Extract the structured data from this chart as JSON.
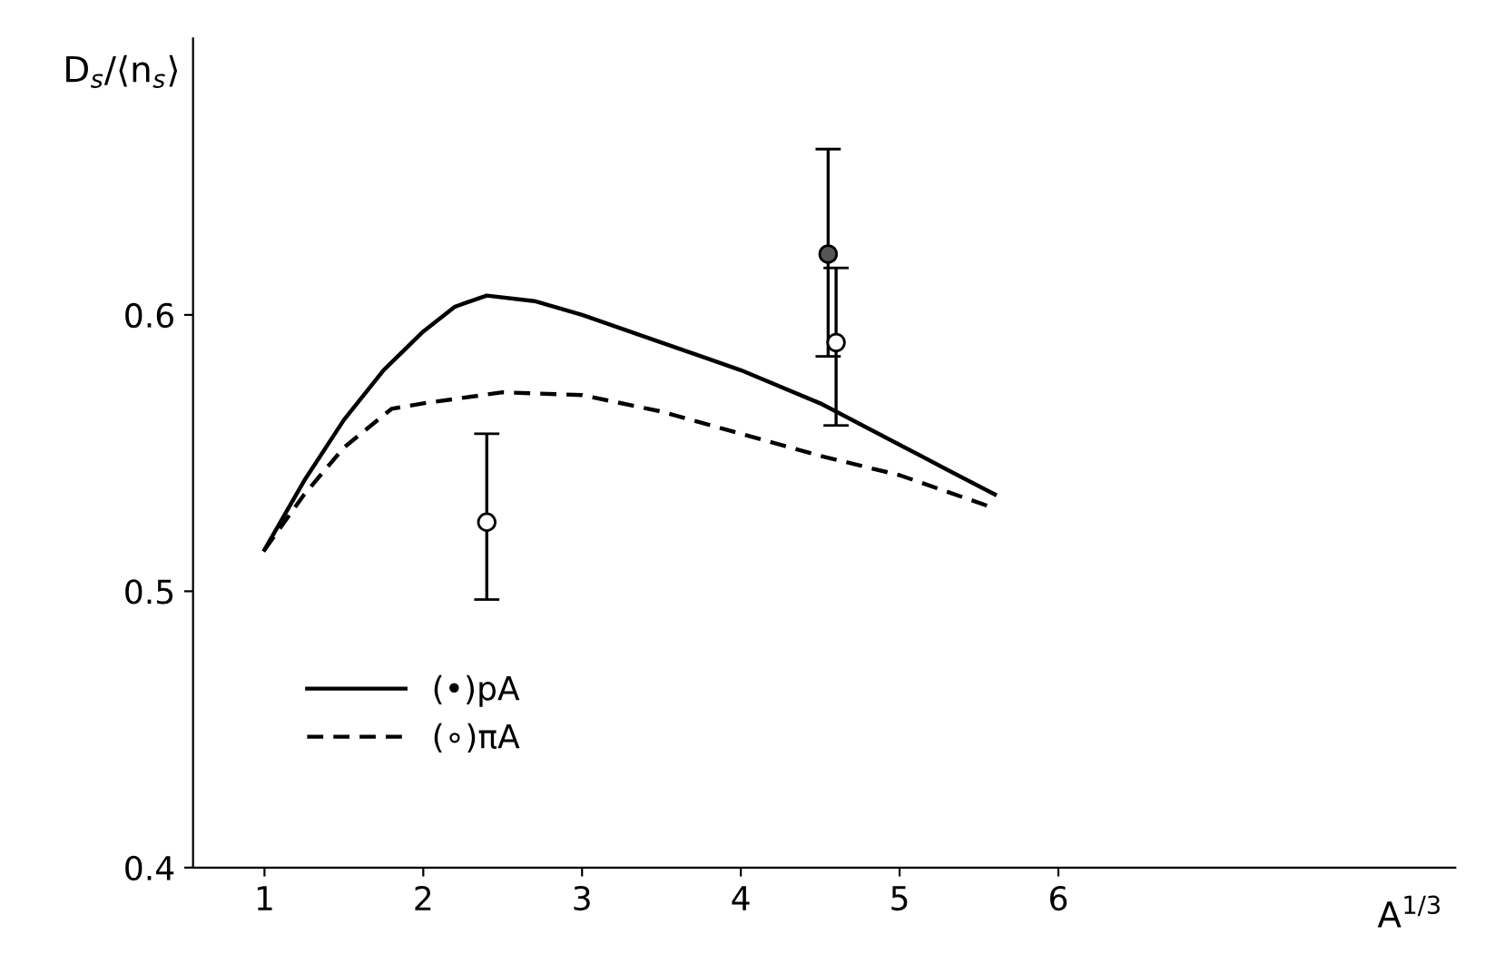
{
  "chart_data": {
    "type": "line",
    "xlabel": "A$^{1/3}$",
    "ylabel": "D$_{s}$/⟨n$_{s}$⟩",
    "xlim": [
      0.55,
      8.5
    ],
    "ylim": [
      0.4,
      0.7
    ],
    "xticks": [
      1,
      2,
      3,
      4,
      5,
      6
    ],
    "yticks": [
      {
        "value": 0.4,
        "label": "0.4"
      },
      {
        "value": 0.5,
        "label": "0.5"
      },
      {
        "value": 0.6,
        "label": "0.6"
      }
    ],
    "grid": false,
    "legend": "bottom left",
    "marker": "none",
    "series": [
      {
        "name": "(•)pA",
        "color": "#000000",
        "line_style": "solid",
        "x": [
          1,
          1.25,
          1.5,
          1.75,
          2,
          2.2,
          2.4,
          2.7,
          3,
          3.5,
          4,
          4.5,
          5,
          5.3,
          5.6
        ],
        "values": [
          0.515,
          0.54,
          0.562,
          0.58,
          0.594,
          0.603,
          0.607,
          0.605,
          0.6,
          0.59,
          0.58,
          0.568,
          0.553,
          0.544,
          0.535
        ]
      },
      {
        "name": "(∘)πA",
        "color": "#000000",
        "line_style": "dashed",
        "x": [
          1,
          1.25,
          1.5,
          1.8,
          2,
          2.5,
          3,
          3.5,
          4,
          4.5,
          5,
          5.55
        ],
        "values": [
          0.515,
          0.535,
          0.552,
          0.566,
          0.568,
          0.572,
          0.571,
          0.565,
          0.557,
          0.549,
          0.542,
          0.531
        ]
      },
      {
        "type": "scatter",
        "color": "#555555",
        "marker": "circle",
        "x": [
          4.55
        ],
        "values": [
          0.622
        ],
        "errors": [
          [
            0.585,
            0.66
          ]
        ]
      },
      {
        "type": "scatter",
        "color": "#ffffff",
        "marker": "circle",
        "x": [
          2.4,
          4.6
        ],
        "values": [
          0.525,
          0.59
        ],
        "errors": [
          [
            0.497,
            0.557
          ],
          [
            0.56,
            0.617
          ]
        ]
      }
    ]
  }
}
